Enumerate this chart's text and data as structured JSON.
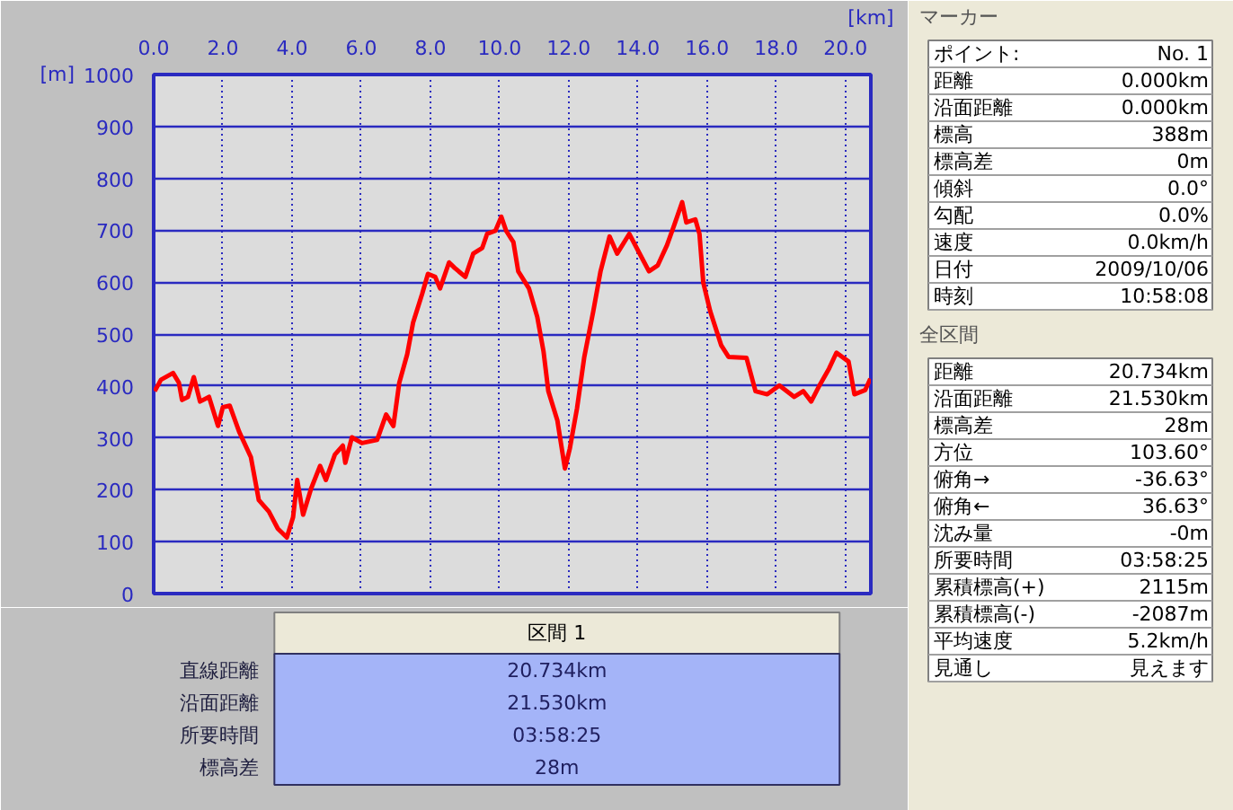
{
  "chart_data": {
    "type": "line",
    "xlabel": "[km]",
    "ylabel": "[m]",
    "x": [
      0.03,
      0.21,
      0.56,
      0.73,
      0.82,
      0.99,
      1.16,
      1.34,
      1.6,
      1.86,
      2.0,
      2.2,
      2.47,
      2.81,
      3.04,
      3.33,
      3.59,
      3.85,
      4.03,
      4.15,
      4.32,
      4.55,
      4.81,
      4.98,
      5.24,
      5.47,
      5.54,
      5.73,
      6.02,
      6.46,
      6.72,
      6.93,
      7.1,
      7.33,
      7.5,
      7.76,
      7.93,
      8.14,
      8.28,
      8.54,
      8.71,
      9.01,
      9.24,
      9.5,
      9.64,
      9.88,
      10.05,
      10.19,
      10.4,
      10.54,
      10.85,
      11.09,
      11.27,
      11.41,
      11.67,
      11.89,
      12.03,
      12.24,
      12.45,
      12.71,
      12.92,
      13.18,
      13.4,
      13.75,
      14.01,
      14.32,
      14.57,
      14.84,
      15.05,
      15.28,
      15.4,
      15.66,
      15.78,
      15.89,
      16.09,
      16.41,
      16.62,
      17.14,
      17.4,
      17.74,
      18.09,
      18.52,
      18.78,
      19.01,
      19.25,
      19.53,
      19.74,
      20.09,
      20.26,
      20.57,
      20.72
    ],
    "series": [
      {
        "color": "#ff0000",
        "values": [
          390,
          412,
          425,
          406,
          373,
          379,
          417,
          370,
          379,
          323,
          359,
          362,
          312,
          263,
          180,
          158,
          125,
          108,
          147,
          219,
          152,
          202,
          246,
          219,
          268,
          285,
          252,
          301,
          290,
          296,
          345,
          323,
          406,
          461,
          522,
          577,
          616,
          610,
          588,
          638,
          627,
          610,
          655,
          666,
          693,
          699,
          726,
          699,
          677,
          621,
          588,
          533,
          467,
          390,
          334,
          241,
          279,
          357,
          456,
          544,
          621,
          688,
          655,
          693,
          660,
          621,
          632,
          671,
          710,
          754,
          715,
          721,
          693,
          599,
          544,
          478,
          456,
          454,
          390,
          384,
          401,
          379,
          390,
          370,
          401,
          434,
          464,
          447,
          384,
          392,
          414
        ]
      }
    ],
    "xlim": [
      0,
      20.734
    ],
    "ylim": [
      0,
      1000
    ],
    "xticks": [
      {
        "value": 0,
        "label": "0.0"
      },
      {
        "value": 2,
        "label": "2.0"
      },
      {
        "value": 4,
        "label": "4.0"
      },
      {
        "value": 6,
        "label": "6.0"
      },
      {
        "value": 8,
        "label": "8.0"
      },
      {
        "value": 10,
        "label": "10.0"
      },
      {
        "value": 12,
        "label": "12.0"
      },
      {
        "value": 14,
        "label": "14.0"
      },
      {
        "value": 16,
        "label": "16.0"
      },
      {
        "value": 18,
        "label": "18.0"
      },
      {
        "value": 20,
        "label": "20.0"
      }
    ],
    "yticks": [
      0,
      100,
      200,
      300,
      400,
      500,
      600,
      700,
      800,
      900,
      1000
    ],
    "grid": true,
    "marker": "none",
    "line_style": "solid",
    "annotations": [
      "マーカー",
      "ポイント:",
      "No. 1",
      "距離",
      "0.000km",
      "沿面距離",
      "0.000km",
      "標高",
      "388m",
      "標高差",
      "0m",
      "傾斜",
      "0.0°",
      "勾配",
      "0.0%",
      "速度",
      "0.0km/h",
      "日付",
      "2009/10/06",
      "時刻",
      "10:58:08",
      "全区間",
      "距離",
      "20.734km",
      "沿面距離",
      "21.530km",
      "標高差",
      "28m",
      "方位",
      "103.60°",
      "俯角→",
      "-36.63°",
      "俯角←",
      "36.63°",
      "沈み量",
      "-0m",
      "所要時間",
      "03:58:25",
      "累積標高(+)",
      "2115m",
      "累積標高(-)",
      "-2087m",
      "平均速度",
      "5.2km/h",
      "見通し",
      "見えます",
      "区間 1",
      "直線距離",
      "20.734km",
      "沿面距離",
      "21.530km",
      "所要時間",
      "03:58:25",
      "標高差",
      "28m"
    ]
  }
}
